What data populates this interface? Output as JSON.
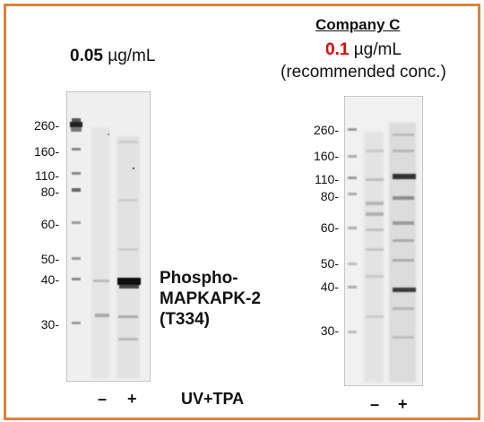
{
  "left_panel": {
    "concentration_value": "0.05",
    "concentration_unit": "µg/mL",
    "mw_markers": [
      "260-",
      "160-",
      "110-",
      "80-",
      "60-",
      "50-",
      "40-",
      "30-"
    ],
    "band_annotation": {
      "line1": "Phospho-",
      "line2": "MAPKAPK-2",
      "line3": "(T334)"
    },
    "lane_minus": "–",
    "lane_plus": "+",
    "condition_label": "UV+TPA"
  },
  "right_panel": {
    "company": "Company C",
    "concentration_value": "0.1",
    "concentration_unit": "µg/mL",
    "note": "(recommended conc.)",
    "mw_markers": [
      "260-",
      "160-",
      "110-",
      "80-",
      "60-",
      "50-",
      "40-",
      "30-"
    ],
    "lane_minus": "–",
    "lane_plus": "+"
  },
  "colors": {
    "frame": "#e0823a",
    "highlight_value": "#e00000"
  }
}
